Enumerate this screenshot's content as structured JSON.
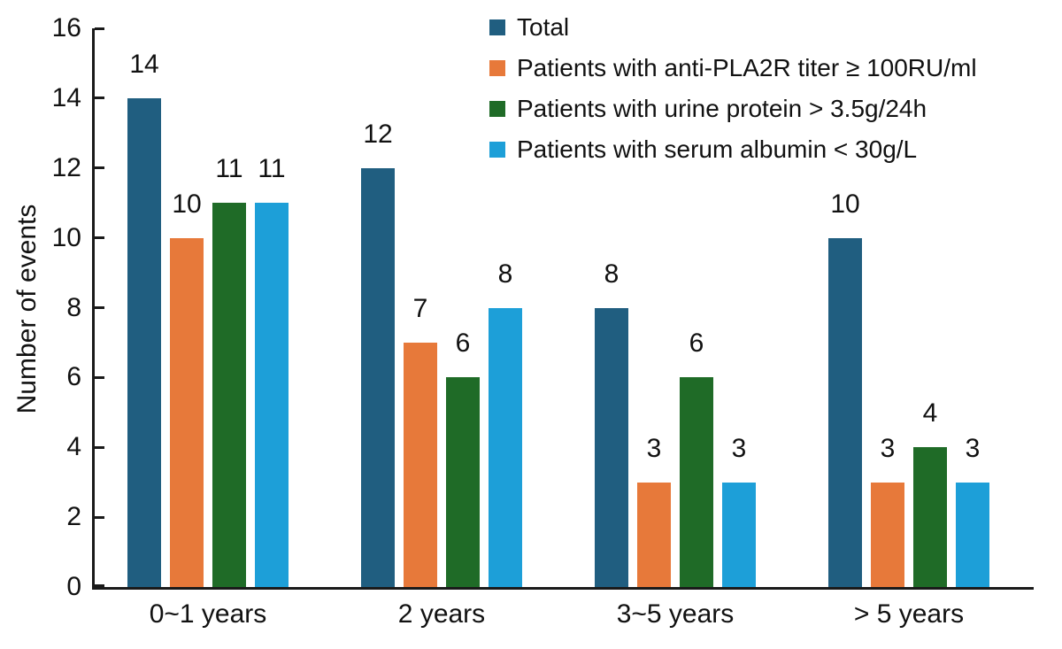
{
  "chart_data": {
    "type": "bar",
    "title": "",
    "xlabel": "",
    "ylabel": "Number of events",
    "ylim": [
      0,
      16
    ],
    "ytick_step": 2,
    "grid": false,
    "legend_position": "top-right",
    "categories": [
      "0~1 years",
      "2 years",
      "3~5 years",
      "> 5 years"
    ],
    "series": [
      {
        "name": "Total",
        "color": "#205E80",
        "values": [
          14,
          12,
          8,
          10
        ]
      },
      {
        "name": "Patients with anti-PLA2R titer ≥ 100RU/ml",
        "color": "#E7793A",
        "values": [
          10,
          7,
          3,
          3
        ]
      },
      {
        "name": "Patients with urine protein > 3.5g/24h",
        "color": "#1F6B27",
        "values": [
          11,
          6,
          6,
          4
        ]
      },
      {
        "name": "Patients with serum albumin < 30g/L",
        "color": "#1D9FD8",
        "values": [
          11,
          8,
          3,
          3
        ]
      }
    ],
    "axis_color": "#1a1a1a",
    "text_color": "#111111",
    "background": "#ffffff"
  }
}
